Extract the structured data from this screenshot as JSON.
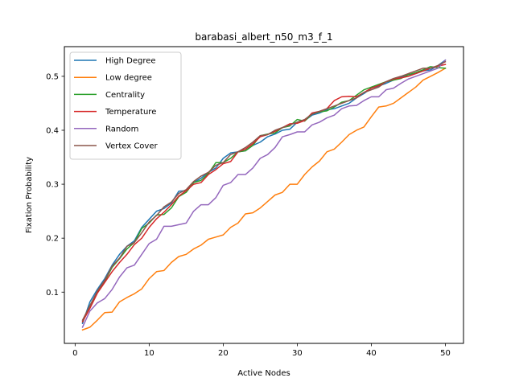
{
  "chart_data": {
    "type": "line",
    "title": "barabasi_albert_n50_m3_f_1",
    "xlabel": "Active Nodes",
    "ylabel": "Fixation Probability",
    "xlim": [
      -1.45,
      52.45
    ],
    "ylim": [
      0.005,
      0.555
    ],
    "xticks": [
      0,
      10,
      20,
      30,
      40,
      50
    ],
    "yticks": [
      0.1,
      0.2,
      0.3,
      0.4,
      0.5
    ],
    "ytick_labels": [
      "0.1",
      "0.2",
      "0.3",
      "0.4",
      "0.5"
    ],
    "grid": false,
    "legend_position": "upper-left",
    "x": [
      1,
      2,
      3,
      4,
      5,
      6,
      7,
      8,
      9,
      10,
      11,
      12,
      13,
      14,
      15,
      16,
      17,
      18,
      19,
      20,
      21,
      22,
      23,
      24,
      25,
      26,
      27,
      28,
      29,
      30,
      31,
      32,
      33,
      34,
      35,
      36,
      37,
      38,
      39,
      40,
      41,
      42,
      43,
      44,
      45,
      46,
      47,
      48,
      49,
      50
    ],
    "series": [
      {
        "name": "High Degree",
        "color": "#1f77b4",
        "values": [
          0.042,
          0.082,
          0.105,
          0.125,
          0.15,
          0.17,
          0.185,
          0.195,
          0.22,
          0.235,
          0.25,
          0.255,
          0.265,
          0.287,
          0.288,
          0.303,
          0.311,
          0.322,
          0.33,
          0.348,
          0.358,
          0.36,
          0.362,
          0.372,
          0.378,
          0.388,
          0.393,
          0.4,
          0.402,
          0.415,
          0.418,
          0.428,
          0.432,
          0.438,
          0.44,
          0.445,
          0.45,
          0.46,
          0.468,
          0.478,
          0.482,
          0.487,
          0.493,
          0.498,
          0.503,
          0.505,
          0.51,
          0.512,
          0.52,
          0.53
        ]
      },
      {
        "name": "Low degree",
        "color": "#ff7f0e",
        "values": [
          0.03,
          0.035,
          0.048,
          0.062,
          0.063,
          0.082,
          0.09,
          0.097,
          0.106,
          0.125,
          0.138,
          0.14,
          0.155,
          0.166,
          0.17,
          0.18,
          0.187,
          0.198,
          0.202,
          0.206,
          0.22,
          0.228,
          0.245,
          0.247,
          0.256,
          0.268,
          0.28,
          0.285,
          0.3,
          0.3,
          0.318,
          0.332,
          0.343,
          0.36,
          0.365,
          0.378,
          0.392,
          0.4,
          0.406,
          0.425,
          0.443,
          0.445,
          0.45,
          0.46,
          0.47,
          0.48,
          0.493,
          0.5,
          0.507,
          0.515
        ]
      },
      {
        "name": "Centrality",
        "color": "#2ca02c",
        "values": [
          0.045,
          0.075,
          0.1,
          0.12,
          0.146,
          0.162,
          0.18,
          0.192,
          0.218,
          0.228,
          0.243,
          0.244,
          0.256,
          0.277,
          0.285,
          0.303,
          0.307,
          0.32,
          0.34,
          0.34,
          0.348,
          0.36,
          0.362,
          0.372,
          0.39,
          0.393,
          0.395,
          0.405,
          0.408,
          0.42,
          0.417,
          0.43,
          0.434,
          0.436,
          0.443,
          0.452,
          0.455,
          0.465,
          0.475,
          0.48,
          0.485,
          0.49,
          0.493,
          0.496,
          0.503,
          0.507,
          0.512,
          0.518,
          0.516,
          0.515
        ]
      },
      {
        "name": "Temperature",
        "color": "#d62728",
        "values": [
          0.045,
          0.07,
          0.098,
          0.118,
          0.138,
          0.155,
          0.17,
          0.188,
          0.2,
          0.22,
          0.236,
          0.248,
          0.262,
          0.278,
          0.288,
          0.3,
          0.303,
          0.318,
          0.327,
          0.338,
          0.342,
          0.36,
          0.365,
          0.375,
          0.388,
          0.392,
          0.398,
          0.405,
          0.412,
          0.413,
          0.418,
          0.432,
          0.435,
          0.44,
          0.455,
          0.462,
          0.463,
          0.462,
          0.47,
          0.478,
          0.483,
          0.49,
          0.495,
          0.497,
          0.5,
          0.505,
          0.51,
          0.515,
          0.519,
          0.522
        ]
      },
      {
        "name": "Random",
        "color": "#9467bd",
        "values": [
          0.035,
          0.065,
          0.08,
          0.088,
          0.105,
          0.128,
          0.145,
          0.15,
          0.17,
          0.19,
          0.198,
          0.222,
          0.222,
          0.225,
          0.228,
          0.25,
          0.262,
          0.262,
          0.275,
          0.298,
          0.303,
          0.318,
          0.318,
          0.33,
          0.348,
          0.355,
          0.368,
          0.388,
          0.392,
          0.397,
          0.397,
          0.41,
          0.415,
          0.423,
          0.428,
          0.44,
          0.445,
          0.446,
          0.455,
          0.462,
          0.462,
          0.475,
          0.478,
          0.487,
          0.495,
          0.5,
          0.505,
          0.51,
          0.515,
          0.53
        ]
      },
      {
        "name": "Vertex Cover",
        "color": "#8c564b",
        "values": [
          0.048,
          0.075,
          0.102,
          0.122,
          0.148,
          0.163,
          0.185,
          0.192,
          0.21,
          0.23,
          0.242,
          0.258,
          0.267,
          0.283,
          0.29,
          0.305,
          0.315,
          0.322,
          0.335,
          0.34,
          0.355,
          0.36,
          0.368,
          0.378,
          0.39,
          0.392,
          0.4,
          0.405,
          0.41,
          0.415,
          0.42,
          0.43,
          0.435,
          0.44,
          0.445,
          0.45,
          0.455,
          0.46,
          0.47,
          0.475,
          0.48,
          0.49,
          0.496,
          0.5,
          0.505,
          0.51,
          0.515,
          0.515,
          0.52,
          0.527
        ]
      }
    ]
  }
}
